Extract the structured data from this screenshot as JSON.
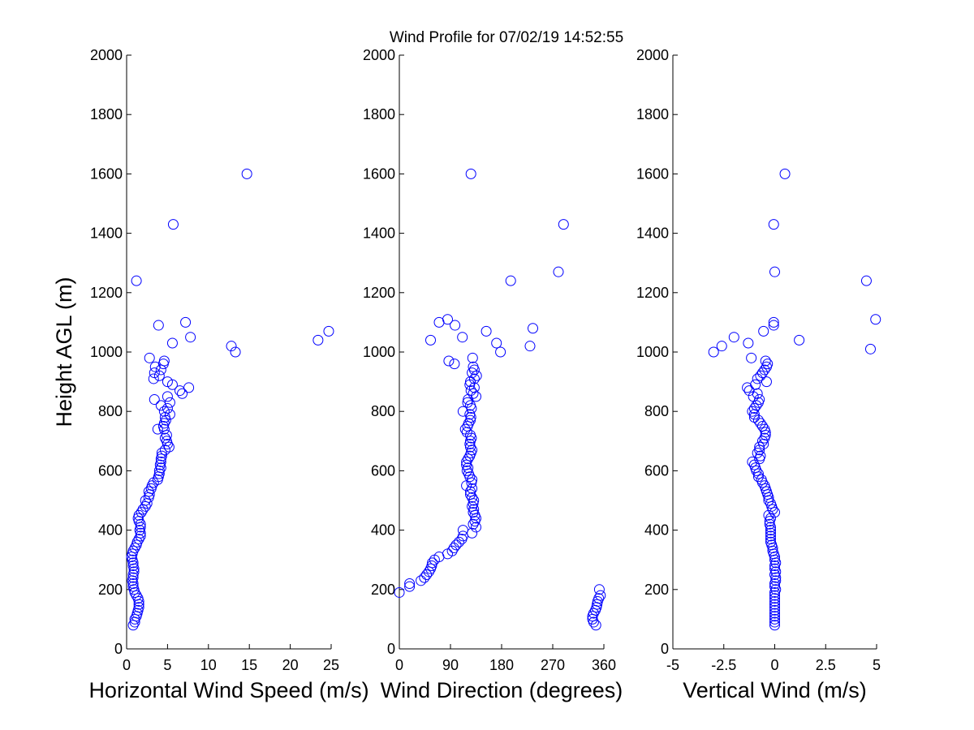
{
  "title": "Wind Profile for  07/02/19 14:52:55",
  "chart_data": [
    {
      "type": "scatter",
      "xlabel": "Horizontal Wind Speed (m/s)",
      "ylabel": "Height AGL (m)",
      "xlim": [
        0,
        25
      ],
      "ylim": [
        0,
        2000
      ],
      "xticks": [
        "0",
        "5",
        "10",
        "15",
        "20",
        "25"
      ],
      "yticks": [
        "0",
        "200",
        "400",
        "600",
        "800",
        "1000",
        "1200",
        "1400",
        "1600",
        "1800",
        "2000"
      ],
      "marker_color": "#0000ff",
      "points": [
        [
          0.8,
          80
        ],
        [
          1.0,
          90
        ],
        [
          1.0,
          100
        ],
        [
          1.2,
          110
        ],
        [
          1.3,
          120
        ],
        [
          1.4,
          130
        ],
        [
          1.5,
          140
        ],
        [
          1.5,
          150
        ],
        [
          1.5,
          160
        ],
        [
          1.4,
          170
        ],
        [
          1.2,
          180
        ],
        [
          1.0,
          190
        ],
        [
          0.9,
          200
        ],
        [
          0.8,
          210
        ],
        [
          0.8,
          220
        ],
        [
          0.7,
          230
        ],
        [
          0.8,
          240
        ],
        [
          0.8,
          250
        ],
        [
          0.9,
          260
        ],
        [
          0.9,
          270
        ],
        [
          0.8,
          280
        ],
        [
          0.8,
          290
        ],
        [
          0.7,
          300
        ],
        [
          0.6,
          310
        ],
        [
          0.7,
          320
        ],
        [
          0.8,
          330
        ],
        [
          1.0,
          340
        ],
        [
          1.2,
          350
        ],
        [
          1.3,
          360
        ],
        [
          1.5,
          370
        ],
        [
          1.7,
          380
        ],
        [
          1.7,
          390
        ],
        [
          1.6,
          400
        ],
        [
          1.7,
          410
        ],
        [
          1.7,
          420
        ],
        [
          1.5,
          430
        ],
        [
          1.4,
          440
        ],
        [
          1.5,
          450
        ],
        [
          1.8,
          460
        ],
        [
          2.0,
          470
        ],
        [
          2.3,
          480
        ],
        [
          2.5,
          490
        ],
        [
          2.3,
          500
        ],
        [
          2.7,
          510
        ],
        [
          2.8,
          520
        ],
        [
          2.7,
          530
        ],
        [
          3.0,
          540
        ],
        [
          3.1,
          550
        ],
        [
          3.3,
          560
        ],
        [
          3.8,
          570
        ],
        [
          3.9,
          580
        ],
        [
          4.0,
          590
        ],
        [
          4.0,
          600
        ],
        [
          4.2,
          610
        ],
        [
          4.1,
          620
        ],
        [
          4.2,
          630
        ],
        [
          4.2,
          640
        ],
        [
          4.3,
          650
        ],
        [
          4.3,
          660
        ],
        [
          4.7,
          670
        ],
        [
          5.2,
          680
        ],
        [
          5.0,
          690
        ],
        [
          4.9,
          700
        ],
        [
          4.7,
          710
        ],
        [
          4.9,
          720
        ],
        [
          4.6,
          740
        ],
        [
          3.8,
          740
        ],
        [
          4.5,
          750
        ],
        [
          4.6,
          760
        ],
        [
          4.8,
          770
        ],
        [
          4.7,
          780
        ],
        [
          5.3,
          790
        ],
        [
          4.6,
          800
        ],
        [
          5.0,
          810
        ],
        [
          4.2,
          820
        ],
        [
          5.3,
          830
        ],
        [
          3.4,
          840
        ],
        [
          5.0,
          850
        ],
        [
          6.8,
          860
        ],
        [
          6.5,
          870
        ],
        [
          7.6,
          880
        ],
        [
          5.6,
          890
        ],
        [
          5.0,
          900
        ],
        [
          3.3,
          910
        ],
        [
          4.0,
          920
        ],
        [
          3.4,
          930
        ],
        [
          4.2,
          940
        ],
        [
          3.5,
          950
        ],
        [
          4.5,
          960
        ],
        [
          4.6,
          970
        ],
        [
          2.8,
          980
        ],
        [
          13.3,
          1000
        ],
        [
          12.8,
          1020
        ],
        [
          5.6,
          1030
        ],
        [
          23.4,
          1040
        ],
        [
          7.8,
          1050
        ],
        [
          24.7,
          1070
        ],
        [
          3.9,
          1090
        ],
        [
          7.2,
          1100
        ],
        [
          1.2,
          1240
        ],
        [
          5.7,
          1430
        ],
        [
          14.7,
          1600
        ]
      ]
    },
    {
      "type": "scatter",
      "xlabel": "Wind Direction (degrees)",
      "ylabel": "",
      "xlim": [
        0,
        360
      ],
      "ylim": [
        0,
        2000
      ],
      "xticks": [
        "0",
        "90",
        "180",
        "270",
        "360"
      ],
      "yticks": [
        "0",
        "200",
        "400",
        "600",
        "800",
        "1000",
        "1200",
        "1400",
        "1600",
        "1800",
        "2000"
      ],
      "marker_color": "#0000ff",
      "points": [
        [
          346,
          80
        ],
        [
          342,
          90
        ],
        [
          340,
          100
        ],
        [
          340,
          110
        ],
        [
          342,
          120
        ],
        [
          345,
          130
        ],
        [
          347,
          140
        ],
        [
          348,
          150
        ],
        [
          349,
          160
        ],
        [
          351,
          170
        ],
        [
          354,
          180
        ],
        [
          0,
          190
        ],
        [
          352,
          200
        ],
        [
          18,
          210
        ],
        [
          18,
          220
        ],
        [
          38,
          230
        ],
        [
          44,
          240
        ],
        [
          48,
          250
        ],
        [
          52,
          260
        ],
        [
          55,
          270
        ],
        [
          57,
          280
        ],
        [
          58,
          290
        ],
        [
          62,
          300
        ],
        [
          70,
          310
        ],
        [
          85,
          320
        ],
        [
          93,
          330
        ],
        [
          96,
          340
        ],
        [
          100,
          350
        ],
        [
          105,
          360
        ],
        [
          110,
          370
        ],
        [
          112,
          380
        ],
        [
          128,
          390
        ],
        [
          112,
          400
        ],
        [
          135,
          410
        ],
        [
          130,
          420
        ],
        [
          133,
          430
        ],
        [
          135,
          440
        ],
        [
          133,
          450
        ],
        [
          130,
          460
        ],
        [
          131,
          470
        ],
        [
          128,
          480
        ],
        [
          130,
          490
        ],
        [
          131,
          500
        ],
        [
          128,
          510
        ],
        [
          125,
          520
        ],
        [
          125,
          530
        ],
        [
          128,
          540
        ],
        [
          118,
          550
        ],
        [
          127,
          560
        ],
        [
          128,
          570
        ],
        [
          124,
          580
        ],
        [
          122,
          590
        ],
        [
          119,
          600
        ],
        [
          121,
          610
        ],
        [
          118,
          620
        ],
        [
          118,
          630
        ],
        [
          121,
          640
        ],
        [
          124,
          650
        ],
        [
          126,
          660
        ],
        [
          128,
          670
        ],
        [
          125,
          680
        ],
        [
          124,
          690
        ],
        [
          125,
          700
        ],
        [
          127,
          710
        ],
        [
          125,
          720
        ],
        [
          119,
          730
        ],
        [
          116,
          740
        ],
        [
          120,
          750
        ],
        [
          122,
          760
        ],
        [
          125,
          770
        ],
        [
          126,
          780
        ],
        [
          124,
          790
        ],
        [
          112,
          800
        ],
        [
          127,
          810
        ],
        [
          125,
          820
        ],
        [
          120,
          830
        ],
        [
          121,
          840
        ],
        [
          135,
          850
        ],
        [
          130,
          860
        ],
        [
          126,
          870
        ],
        [
          132,
          880
        ],
        [
          124,
          890
        ],
        [
          125,
          900
        ],
        [
          132,
          910
        ],
        [
          136,
          920
        ],
        [
          128,
          930
        ],
        [
          132,
          940
        ],
        [
          130,
          950
        ],
        [
          97,
          960
        ],
        [
          87,
          970
        ],
        [
          129,
          980
        ],
        [
          178,
          1000
        ],
        [
          230,
          1020
        ],
        [
          171,
          1030
        ],
        [
          55,
          1040
        ],
        [
          111,
          1050
        ],
        [
          153,
          1070
        ],
        [
          235,
          1080
        ],
        [
          98,
          1090
        ],
        [
          70,
          1100
        ],
        [
          85,
          1110
        ],
        [
          196,
          1240
        ],
        [
          280,
          1270
        ],
        [
          289,
          1430
        ],
        [
          126,
          1600
        ]
      ]
    },
    {
      "type": "scatter",
      "xlabel": "Vertical Wind (m/s)",
      "ylabel": "",
      "xlim": [
        -5,
        5
      ],
      "ylim": [
        0,
        2000
      ],
      "xticks": [
        "-5",
        "-2.5",
        "0",
        "2.5",
        "5"
      ],
      "yticks": [
        "0",
        "200",
        "400",
        "600",
        "800",
        "1000",
        "1200",
        "1400",
        "1600",
        "1800",
        "2000"
      ],
      "marker_color": "#0000ff",
      "points": [
        [
          0,
          80
        ],
        [
          0,
          90
        ],
        [
          0,
          100
        ],
        [
          0,
          110
        ],
        [
          0,
          120
        ],
        [
          0,
          130
        ],
        [
          0,
          140
        ],
        [
          0,
          150
        ],
        [
          0,
          160
        ],
        [
          0,
          170
        ],
        [
          0,
          180
        ],
        [
          0,
          190
        ],
        [
          0.05,
          200
        ],
        [
          0,
          210
        ],
        [
          0,
          220
        ],
        [
          0.05,
          230
        ],
        [
          0.05,
          240
        ],
        [
          0,
          250
        ],
        [
          0.05,
          260
        ],
        [
          0,
          270
        ],
        [
          0,
          280
        ],
        [
          0.05,
          290
        ],
        [
          0,
          300
        ],
        [
          0,
          310
        ],
        [
          -0.05,
          320
        ],
        [
          -0.1,
          330
        ],
        [
          -0.1,
          340
        ],
        [
          -0.15,
          350
        ],
        [
          -0.2,
          360
        ],
        [
          -0.2,
          370
        ],
        [
          -0.2,
          380
        ],
        [
          -0.2,
          390
        ],
        [
          -0.2,
          400
        ],
        [
          -0.2,
          410
        ],
        [
          -0.25,
          420
        ],
        [
          -0.25,
          430
        ],
        [
          -0.2,
          440
        ],
        [
          -0.3,
          450
        ],
        [
          0,
          460
        ],
        [
          -0.1,
          470
        ],
        [
          -0.15,
          480
        ],
        [
          -0.2,
          490
        ],
        [
          -0.3,
          500
        ],
        [
          -0.3,
          510
        ],
        [
          -0.35,
          520
        ],
        [
          -0.4,
          530
        ],
        [
          -0.45,
          540
        ],
        [
          -0.5,
          550
        ],
        [
          -0.6,
          560
        ],
        [
          -0.65,
          570
        ],
        [
          -0.8,
          580
        ],
        [
          -0.8,
          590
        ],
        [
          -0.9,
          600
        ],
        [
          -0.95,
          610
        ],
        [
          -1.0,
          620
        ],
        [
          -1.1,
          630
        ],
        [
          -0.75,
          640
        ],
        [
          -0.7,
          650
        ],
        [
          -0.85,
          660
        ],
        [
          -0.75,
          670
        ],
        [
          -0.75,
          680
        ],
        [
          -0.55,
          690
        ],
        [
          -0.6,
          700
        ],
        [
          -0.5,
          710
        ],
        [
          -0.45,
          720
        ],
        [
          -0.45,
          730
        ],
        [
          -0.5,
          740
        ],
        [
          -0.6,
          750
        ],
        [
          -0.7,
          760
        ],
        [
          -0.8,
          770
        ],
        [
          -1.0,
          780
        ],
        [
          -1.0,
          790
        ],
        [
          -1.1,
          800
        ],
        [
          -1.0,
          810
        ],
        [
          -0.9,
          820
        ],
        [
          -0.8,
          830
        ],
        [
          -0.75,
          840
        ],
        [
          -1.05,
          850
        ],
        [
          -0.85,
          860
        ],
        [
          -1.25,
          870
        ],
        [
          -1.35,
          880
        ],
        [
          -0.95,
          890
        ],
        [
          -0.4,
          900
        ],
        [
          -0.85,
          910
        ],
        [
          -0.7,
          920
        ],
        [
          -0.6,
          930
        ],
        [
          -0.5,
          940
        ],
        [
          -0.4,
          950
        ],
        [
          -0.35,
          960
        ],
        [
          -0.45,
          970
        ],
        [
          -1.15,
          980
        ],
        [
          -3.0,
          1000
        ],
        [
          4.7,
          1010
        ],
        [
          -2.6,
          1020
        ],
        [
          -1.3,
          1030
        ],
        [
          1.2,
          1040
        ],
        [
          -2.0,
          1050
        ],
        [
          -0.55,
          1070
        ],
        [
          -0.05,
          1090
        ],
        [
          -0.05,
          1100
        ],
        [
          4.95,
          1110
        ],
        [
          4.5,
          1240
        ],
        [
          0,
          1270
        ],
        [
          -0.05,
          1430
        ],
        [
          0.5,
          1600
        ]
      ]
    }
  ]
}
